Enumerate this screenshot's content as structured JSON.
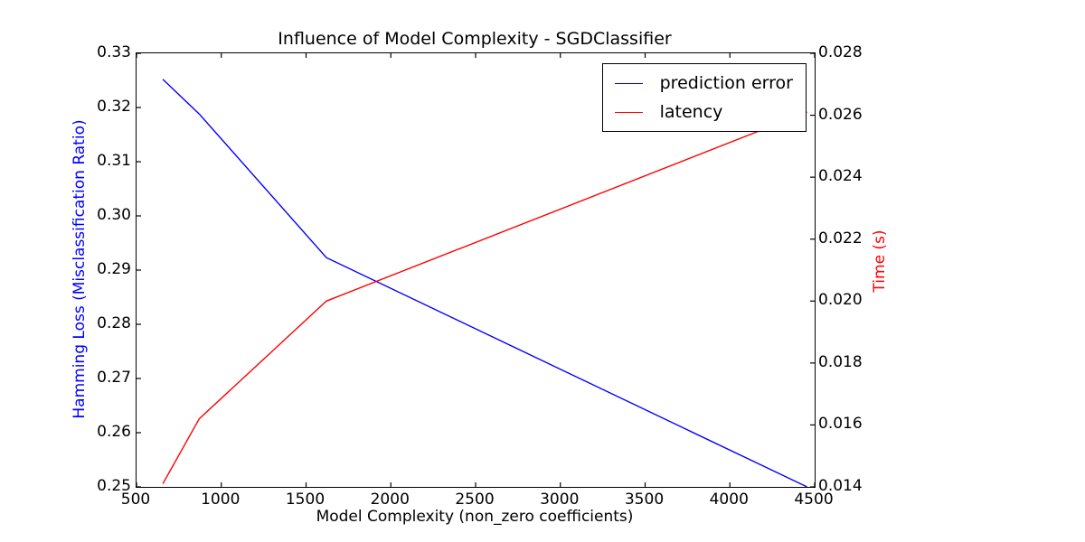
{
  "chart_data": {
    "type": "line",
    "title": "Influence of Model Complexity - SGDClassifier",
    "xlabel": "Model Complexity (non_zero coefficients)",
    "ylabel_left": "Hamming Loss (Misclassification Ratio)",
    "ylabel_right": "Time (s)",
    "xlim": [
      500,
      4500
    ],
    "ylim_left": [
      0.25,
      0.33
    ],
    "ylim_right": [
      0.014,
      0.028
    ],
    "x_tick_labels": [
      "500",
      "1000",
      "1500",
      "2000",
      "2500",
      "3000",
      "3500",
      "4000",
      "4500"
    ],
    "y_left_tick_labels": [
      "0.25",
      "0.26",
      "0.27",
      "0.28",
      "0.29",
      "0.30",
      "0.31",
      "0.32",
      "0.33"
    ],
    "y_right_tick_labels": [
      "0.014",
      "0.016",
      "0.018",
      "0.020",
      "0.022",
      "0.024",
      "0.026",
      "0.028"
    ],
    "x": [
      655,
      870,
      1620,
      4455
    ],
    "series": [
      {
        "name": "prediction error",
        "axis": "left",
        "color": "#0000ff",
        "values": [
          0.3252,
          0.3188,
          0.2923,
          0.25
        ]
      },
      {
        "name": "latency",
        "axis": "right",
        "color": "#ff0000",
        "values": [
          0.0141,
          0.0162,
          0.02,
          0.0261
        ]
      }
    ],
    "legend": {
      "position": "upper right",
      "entries": [
        "prediction error",
        "latency"
      ]
    },
    "grid": false,
    "axis_label_colors": {
      "left": "#0000ff",
      "right": "#ff0000"
    },
    "frame_color": "#000000"
  }
}
